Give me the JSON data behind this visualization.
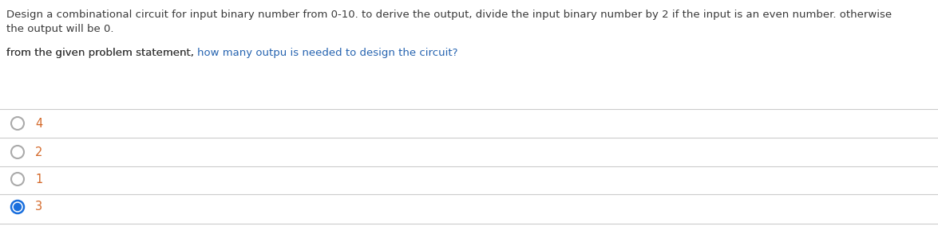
{
  "paragraph1_line1": "Design a combinational circuit for input binary number from 0-10. to derive the output, divide the input binary number by 2 if the input is an even number. otherwise",
  "paragraph1_line2": "the output will be 0.",
  "paragraph2_part1": "from the given problem statement, ",
  "paragraph2_part2": "how many outpu is needed to design the circuit?",
  "options": [
    "4",
    "2",
    "1",
    "3"
  ],
  "selected_index": 3,
  "text_color_black": "#3a3a3a",
  "text_color_blue": "#2563b0",
  "option_text_color": "#d4692a",
  "radio_color_unselected": "#aaaaaa",
  "radio_color_selected": "#1a6fdd",
  "line_color": "#cccccc",
  "bg_color": "#ffffff",
  "font_size_body": 9.5,
  "font_size_options": 10.5
}
